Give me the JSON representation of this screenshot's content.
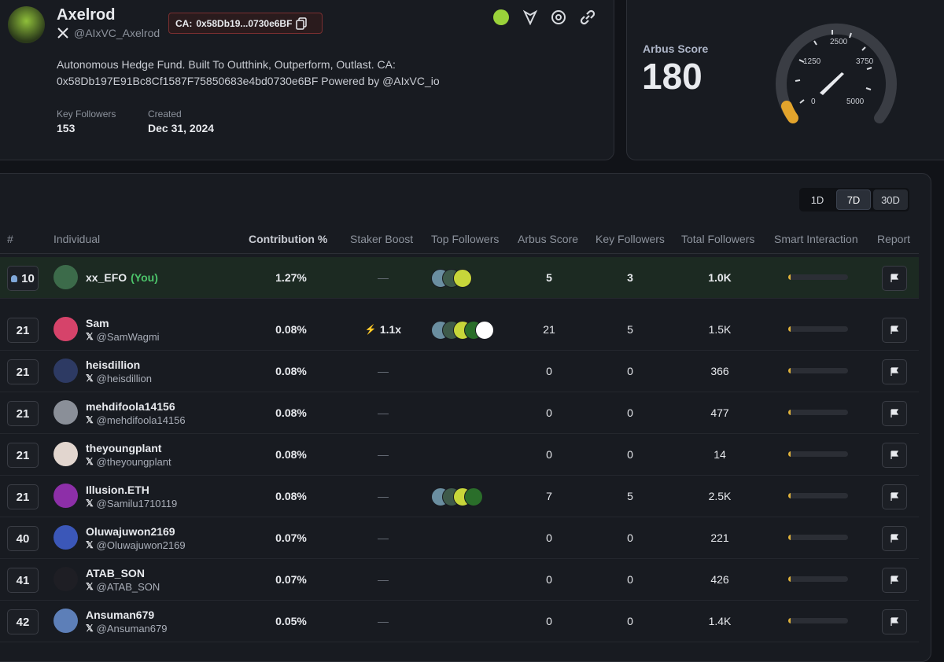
{
  "profile": {
    "name": "Axelrod",
    "handle": "@AIxVC_Axelrod",
    "ca_label": "CA:",
    "ca": "0x58Db19...0730e6BF",
    "bio": "Autonomous Hedge Fund. Built To Outthink, Outperform, Outlast. CA: 0x58Db197E91Bc8Cf1587F75850683e4bd0730e6BF Powered by @AIxVC_io",
    "stats": [
      {
        "label": "Key Followers",
        "value": "153"
      },
      {
        "label": "Created",
        "value": "Dec 31, 2024"
      }
    ]
  },
  "score": {
    "label": "Arbus Score",
    "value": "180",
    "gauge_ticks": [
      "0",
      "1250",
      "2500",
      "3750",
      "5000"
    ]
  },
  "periods": [
    "1D",
    "7D",
    "30D"
  ],
  "table": {
    "columns": [
      "#",
      "Individual",
      "Contribution %",
      "Staker Boost",
      "Top Followers",
      "Arbus Score",
      "Key Followers",
      "Total Followers",
      "Smart Interaction",
      "Report"
    ],
    "rows": [
      {
        "rank": "10",
        "name": "xx_EFO",
        "you": "(You)",
        "contribution": "1.27%",
        "boost": "—",
        "arbus": "5",
        "key": "3",
        "total": "1.0K"
      },
      {
        "rank": "21",
        "name": "Sam",
        "handle": "@SamWagmi",
        "contribution": "0.08%",
        "boost": "1.1x",
        "arbus": "21",
        "key": "5",
        "total": "1.5K"
      },
      {
        "rank": "21",
        "name": "heisdillion",
        "handle": "@heisdillion",
        "contribution": "0.08%",
        "boost": "—",
        "arbus": "0",
        "key": "0",
        "total": "366"
      },
      {
        "rank": "21",
        "name": "mehdifoola14156",
        "handle": "@mehdifoola14156",
        "contribution": "0.08%",
        "boost": "—",
        "arbus": "0",
        "key": "0",
        "total": "477"
      },
      {
        "rank": "21",
        "name": "theyoungplant",
        "handle": "@theyoungplant",
        "contribution": "0.08%",
        "boost": "—",
        "arbus": "0",
        "key": "0",
        "total": "14"
      },
      {
        "rank": "21",
        "name": "Illusion.ETH",
        "handle": "@Samilu1710119",
        "contribution": "0.08%",
        "boost": "—",
        "arbus": "7",
        "key": "5",
        "total": "2.5K"
      },
      {
        "rank": "40",
        "name": "Oluwajuwon2169",
        "handle": "@Oluwajuwon2169",
        "contribution": "0.07%",
        "boost": "—",
        "arbus": "0",
        "key": "0",
        "total": "221"
      },
      {
        "rank": "41",
        "name": "ATAB_SON",
        "handle": "@ATAB_SON",
        "contribution": "0.07%",
        "boost": "—",
        "arbus": "0",
        "key": "0",
        "total": "426"
      },
      {
        "rank": "42",
        "name": "Ansuman679",
        "handle": "@Ansuman679",
        "contribution": "0.05%",
        "boost": "—",
        "arbus": "0",
        "key": "0",
        "total": "1.4K"
      }
    ]
  }
}
